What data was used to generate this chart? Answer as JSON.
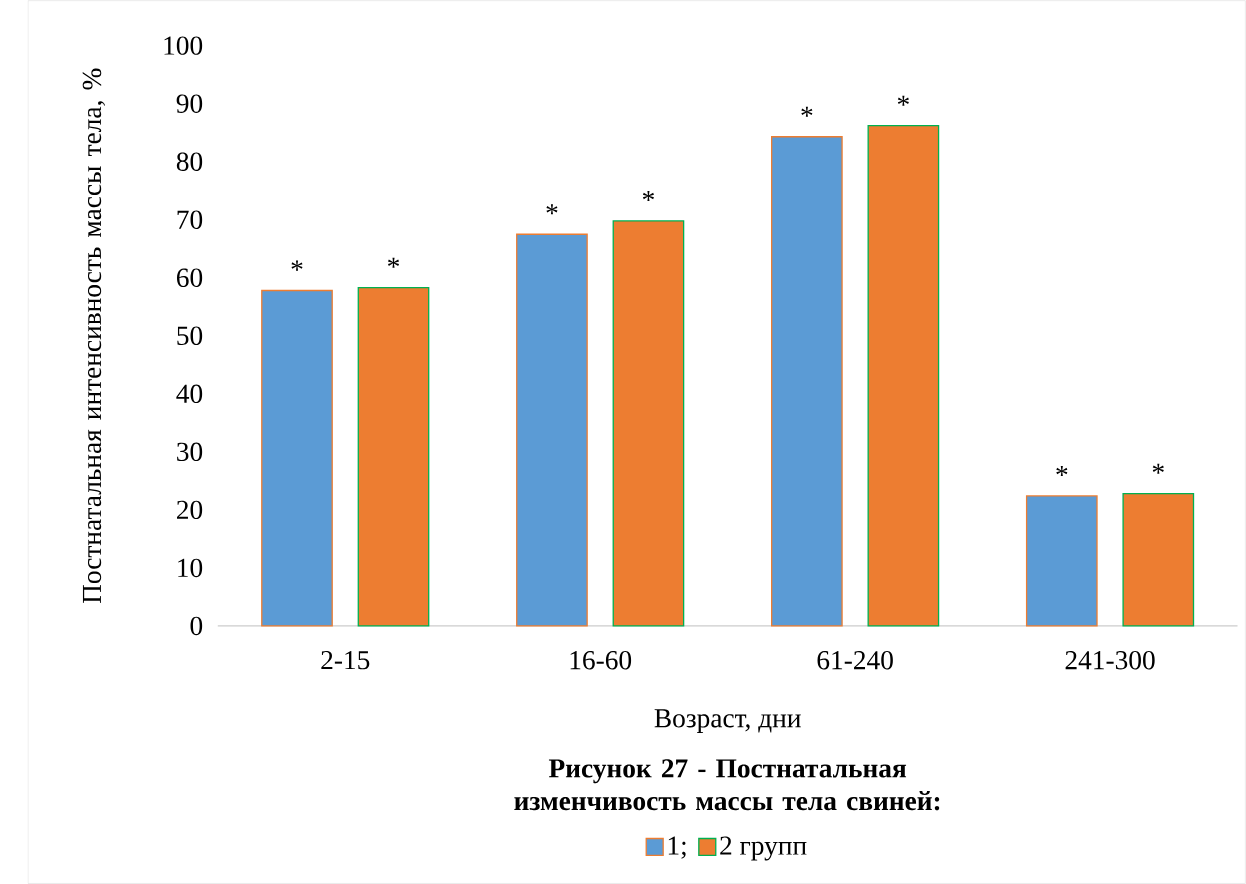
{
  "chart_data": {
    "type": "bar",
    "title": "Рисунок 27 - Постнатальная изменчивость массы тела свиней:",
    "xlabel": "Возраст, дни",
    "ylabel": "Постнатальная интенсивность массы тела, %",
    "categories": [
      "2-15",
      "16-60",
      "61-240",
      "241-300"
    ],
    "series": [
      {
        "name": "1;",
        "color": "#5b9bd5",
        "values": [
          57.8,
          67.5,
          84.3,
          22.4
        ]
      },
      {
        "name": "2 групп",
        "color": "#ed7d31",
        "values": [
          58.3,
          69.8,
          86.2,
          22.8
        ]
      }
    ],
    "ylim": [
      0,
      100
    ],
    "yticks": [
      0,
      10,
      20,
      30,
      40,
      50,
      60,
      70,
      80,
      90,
      100
    ],
    "grid": false,
    "legend": "bottom",
    "annotations": [
      "*",
      "*",
      "*",
      "*",
      "*",
      "*",
      "*",
      "*"
    ]
  }
}
